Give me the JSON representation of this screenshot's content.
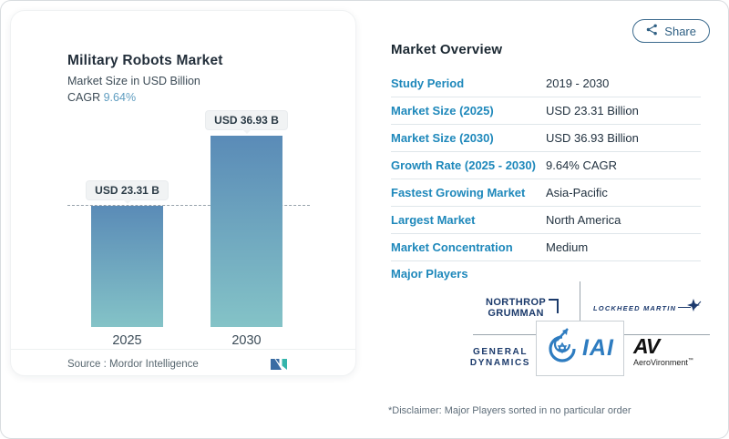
{
  "share": {
    "label": "Share"
  },
  "chart": {
    "title": "Military Robots Market",
    "subtitle": "Market Size in USD Billion",
    "cagr_label": "CAGR",
    "cagr_value": "9.64%",
    "source_label": "Source :",
    "source_value": "Mordor Intelligence"
  },
  "chart_data": {
    "type": "bar",
    "title": "Military Robots Market",
    "ylabel": "Market Size in USD Billion",
    "categories": [
      "2025",
      "2030"
    ],
    "values": [
      23.31,
      36.93
    ],
    "value_labels": [
      "USD 23.31 B",
      "USD 36.93 B"
    ],
    "unit": "USD Billion",
    "cagr": "9.64%",
    "ylim": [
      0,
      40
    ],
    "reference_line": {
      "at_value": 23.31,
      "style": "dashed"
    },
    "bar_gradient_top": "#5a8bb7",
    "bar_gradient_bottom": "#84c3c7"
  },
  "overview": {
    "heading": "Market Overview",
    "rows": [
      {
        "label": "Study Period",
        "value": "2019 - 2030"
      },
      {
        "label": "Market Size (2025)",
        "value": "USD 23.31 Billion"
      },
      {
        "label": "Market Size (2030)",
        "value": "USD 36.93 Billion"
      },
      {
        "label": "Growth Rate (2025 - 2030)",
        "value": "9.64% CAGR"
      },
      {
        "label": "Fastest Growing Market",
        "value": "Asia-Pacific"
      },
      {
        "label": "Largest Market",
        "value": "North America"
      },
      {
        "label": "Market Concentration",
        "value": "Medium"
      }
    ],
    "major_players_label": "Major Players",
    "players": [
      {
        "name": "Northrop Grumman",
        "line1": "NORTHROP",
        "line2": "GRUMMAN"
      },
      {
        "name": "Lockheed Martin",
        "text": "LOCKHEED MARTIN"
      },
      {
        "name": "General Dynamics",
        "line1": "GENERAL",
        "line2": "DYNAMICS"
      },
      {
        "name": "IAI",
        "text": "IAI"
      },
      {
        "name": "AeroVironment",
        "mark": "AV",
        "text": "AeroVironment",
        "tm": "™"
      }
    ]
  },
  "disclaimer": "*Disclaimer: Major Players sorted in no particular order",
  "colors": {
    "accent_blue": "#1e88bb",
    "cagr_blue": "#5f9dc0",
    "navy": "#1b3a6b",
    "teal": "#35b5ac",
    "share_blue": "#2e5f83"
  }
}
